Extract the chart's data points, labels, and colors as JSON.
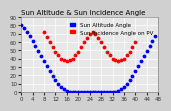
{
  "title": "Sun Altitude & Sun Incidence Angle",
  "legend_labels": [
    "Sun Altitude Angle",
    "Sun Incidence Angle on PV"
  ],
  "legend_colors": [
    "#0000ff",
    "#ff0000"
  ],
  "bg_color": "#d0d0d0",
  "plot_bg_color": "#e8e8e8",
  "grid_color": "#ffffff",
  "ylim": [
    0,
    90
  ],
  "xlim": [
    0,
    48
  ],
  "yticks": [
    0,
    10,
    20,
    30,
    40,
    50,
    60,
    70,
    80,
    90
  ],
  "xtick_count": 13,
  "alt_x": [
    0,
    1,
    2,
    3,
    4,
    5,
    6,
    7,
    8,
    9,
    10,
    11,
    12,
    13,
    14,
    15,
    16,
    17,
    18,
    19,
    20,
    21,
    22,
    23,
    24,
    25,
    26,
    27,
    28,
    29,
    30,
    31,
    32,
    33,
    34,
    35,
    36,
    37,
    38,
    39,
    40,
    41,
    42,
    43,
    44,
    45,
    46,
    47
  ],
  "alt_y": [
    80,
    77,
    72,
    67,
    61,
    55,
    49,
    43,
    37,
    31,
    25,
    19,
    14,
    10,
    6,
    3,
    1,
    0,
    0,
    0,
    0,
    0,
    0,
    0,
    0,
    0,
    0,
    0,
    0,
    0,
    0,
    0,
    0,
    0,
    1,
    3,
    6,
    10,
    14,
    19,
    25,
    31,
    37,
    43,
    49,
    55,
    61,
    67
  ],
  "inc_x": [
    8,
    9,
    10,
    11,
    12,
    13,
    14,
    15,
    16,
    17,
    18,
    19,
    20,
    21,
    22,
    23,
    24,
    25,
    26,
    27,
    28,
    29,
    30,
    31,
    32,
    33,
    34,
    35,
    36,
    37,
    38,
    39,
    40
  ],
  "inc_y": [
    72,
    66,
    60,
    54,
    48,
    44,
    40,
    38,
    37,
    38,
    40,
    44,
    48,
    54,
    60,
    65,
    70,
    72,
    70,
    65,
    60,
    54,
    48,
    44,
    40,
    38,
    37,
    38,
    40,
    44,
    48,
    54,
    60
  ],
  "dot_size": 3,
  "title_fontsize": 5,
  "tick_fontsize": 4,
  "legend_fontsize": 4
}
